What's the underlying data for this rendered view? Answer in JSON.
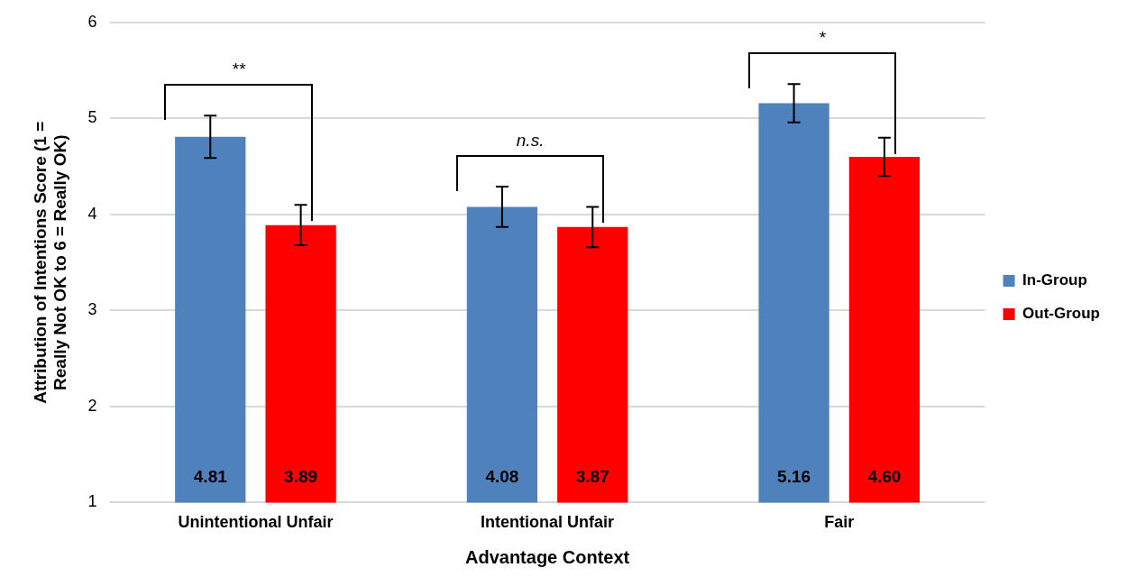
{
  "chart_data": {
    "type": "bar",
    "xlabel": "Advantage Context",
    "ylabel": "Attribution of Intentions Score (1 = Really Not OK to 6 = Really OK)",
    "categories": [
      "Unintentional Unfair",
      "Intentional Unfair",
      "Fair"
    ],
    "series": [
      {
        "name": "In-Group",
        "color": "#4f81bd",
        "values": [
          4.81,
          4.08,
          5.16
        ],
        "errors": [
          0.22,
          0.21,
          0.2
        ],
        "value_labels": [
          "4.81",
          "4.08",
          "5.16"
        ]
      },
      {
        "name": "Out-Group",
        "color": "#ff0000",
        "values": [
          3.89,
          3.87,
          4.6
        ],
        "errors": [
          0.21,
          0.21,
          0.2
        ],
        "value_labels": [
          "3.89",
          "3.87",
          "4.60"
        ]
      }
    ],
    "ylim": [
      1,
      6
    ],
    "yticks": [
      1,
      2,
      3,
      4,
      5,
      6
    ],
    "grid": "y",
    "legend": "right",
    "annotations": [
      "**",
      "n.s.",
      "*"
    ]
  }
}
